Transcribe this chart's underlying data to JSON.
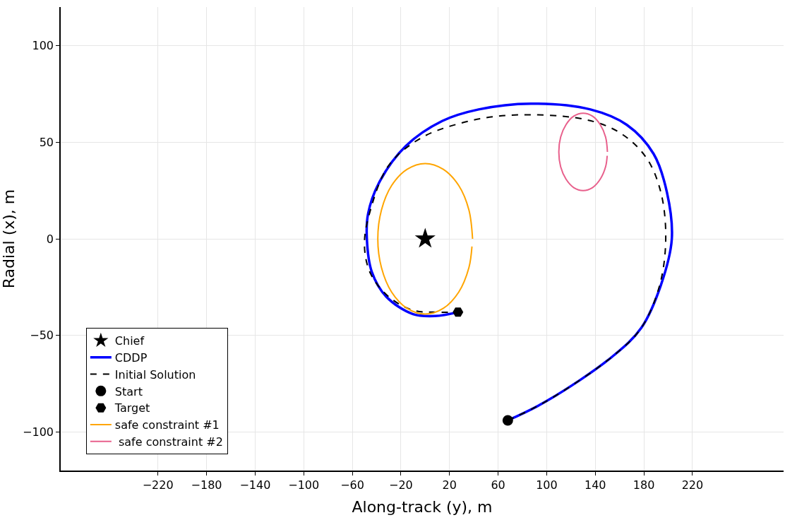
{
  "chart_data": {
    "type": "line",
    "xlabel": "Along-track (y), m",
    "ylabel": "Radial (x), m",
    "xlim": [
      -300,
      295
    ],
    "xticks": [
      {
        "value": -220,
        "label": "−220"
      },
      {
        "value": -180,
        "label": "−180"
      },
      {
        "value": -140,
        "label": "−140"
      },
      {
        "value": -100,
        "label": "−100"
      },
      {
        "value": -60,
        "label": "−60"
      },
      {
        "value": -20,
        "label": "−20"
      },
      20,
      60,
      100,
      140,
      180,
      220
    ],
    "ylim": [
      -120,
      120
    ],
    "yticks": [
      {
        "value": -100,
        "label": "−100"
      },
      {
        "value": -50,
        "label": "−50"
      },
      0,
      50,
      100
    ],
    "grid": true,
    "legend": "bottom left",
    "series": [
      {
        "name": "Chief",
        "type": "scatter",
        "marker": "star",
        "color": "#000000",
        "x": [
          0
        ],
        "values": [
          0
        ]
      },
      {
        "name": "CDDP",
        "color": "#0000ff",
        "line_style": "solid",
        "x": [
          68,
          100,
          154,
          178,
          194,
          203,
          199,
          188,
          166,
          136,
          87,
          44,
          14,
          -16,
          -38,
          -47,
          -48,
          -44,
          -32,
          -10,
          8,
          27
        ],
        "values": [
          -94,
          -84,
          -61,
          -46,
          -24,
          0,
          24,
          44,
          59,
          67,
          70,
          67,
          61,
          48,
          29,
          13,
          0,
          -17,
          -30,
          -39,
          -40,
          -38
        ]
      },
      {
        "name": "Initial Solution",
        "color": "#000000",
        "line_style": "dashed",
        "x": [
          68,
          100,
          154,
          178,
          193,
          198,
          194,
          182,
          160,
          130,
          69,
          30,
          -4,
          -30,
          -45,
          -50,
          -45,
          -30,
          -10,
          8,
          27
        ],
        "values": [
          -94,
          -84,
          -61,
          -46,
          -24,
          0,
          24,
          42,
          55,
          62,
          64,
          60,
          52,
          38,
          15,
          -3,
          -18,
          -30,
          -37,
          -38,
          -38
        ]
      },
      {
        "name": "Start",
        "type": "scatter",
        "marker": "circle",
        "color": "#000000",
        "x": [
          68
        ],
        "values": [
          -94
        ]
      },
      {
        "name": "Target",
        "type": "scatter",
        "color": "#000000",
        "x": [
          27
        ],
        "values": [
          -38
        ]
      },
      {
        "name": "safe constraint #1",
        "color": "#ffa500",
        "line_style": "solid",
        "x": [
          39,
          36,
          27.6,
          14.9,
          0,
          -14.9,
          -27.6,
          -36,
          -39,
          -36,
          -27.6,
          -14.9,
          0,
          14.9,
          27.6,
          36,
          38.5
        ],
        "values": [
          0,
          14.9,
          27.6,
          36,
          39,
          36,
          27.6,
          14.9,
          0,
          -14.9,
          -27.6,
          -36,
          -39,
          -36,
          -27.6,
          -14.9,
          -4
        ]
      },
      {
        "name": " safe constraint #2",
        "color": "#e8608c",
        "line_style": "solid",
        "x": [
          150,
          148.5,
          144.1,
          137.7,
          130,
          122.3,
          115.9,
          111.5,
          110,
          111.5,
          115.9,
          122.3,
          130,
          137.7,
          144.1,
          148.5,
          149.8
        ],
        "values": [
          45,
          52.7,
          59.1,
          63.5,
          65,
          63.5,
          59.1,
          52.7,
          45,
          37.3,
          30.9,
          26.5,
          25,
          26.5,
          30.9,
          37.3,
          43
        ]
      }
    ]
  }
}
